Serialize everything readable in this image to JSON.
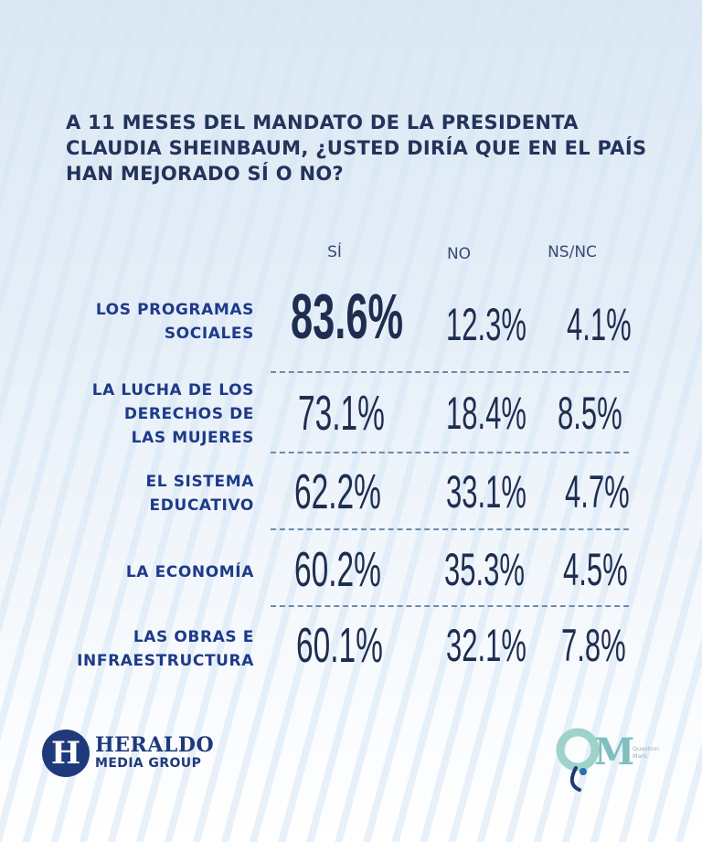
{
  "chart_data": {
    "type": "table",
    "title": "A 11 MESES DEL MANDATO DE LA PRESIDENTA CLAUDIA SHEINBAUM, ¿USTED DIRÍA QUE EN EL PAÍS HAN MEJORADO SÍ O NO?",
    "columns": [
      "SÍ",
      "NO",
      "NS/NC"
    ],
    "rows": [
      {
        "label_lines": [
          "LOS PROGRAMAS",
          "SOCIALES"
        ],
        "values": [
          "83.6%",
          "12.3%",
          "4.1%"
        ]
      },
      {
        "label_lines": [
          "LA LUCHA DE LOS",
          "DERECHOS DE",
          "LAS MUJERES"
        ],
        "values": [
          "73.1%",
          "18.4%",
          "8.5%"
        ]
      },
      {
        "label_lines": [
          "EL SISTEMA",
          "EDUCATIVO"
        ],
        "values": [
          "62.2%",
          "33.1%",
          "4.7%"
        ]
      },
      {
        "label_lines": [
          "LA ECONOMÍA"
        ],
        "values": [
          "60.2%",
          "35.3%",
          "4.5%"
        ]
      },
      {
        "label_lines": [
          "LAS OBRAS E",
          "INFRAESTRUCTURA"
        ],
        "values": [
          "60.1%",
          "32.1%",
          "7.8%"
        ]
      }
    ],
    "colors": {
      "label": "#1e3a8a",
      "value": "#1f2d50",
      "divider": "#6d8aa8"
    }
  },
  "branding": {
    "heraldo_line1": "HERALDO",
    "heraldo_line2": "MEDIA GROUP",
    "heraldo_icon_letter": "H",
    "qm_letters": "QM",
    "qm_sub1": "Question",
    "qm_sub2": "Mark"
  }
}
